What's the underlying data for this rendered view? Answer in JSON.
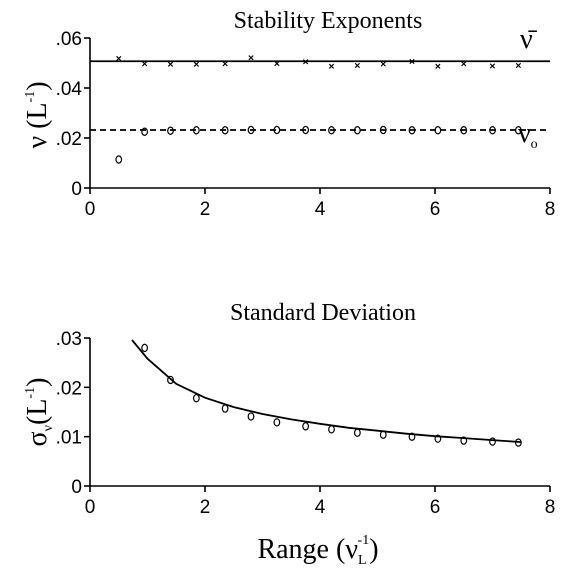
{
  "chart_data": [
    {
      "id": "stability",
      "type": "scatter",
      "title": "Stability Exponents",
      "ylabel": "ν",
      "ylabel_unit": "L",
      "ylabel_unit_sup": "-1",
      "xlim": [
        0,
        8
      ],
      "ylim": [
        0,
        0.06
      ],
      "xticks": [
        0,
        2,
        4,
        6,
        8
      ],
      "xtick_labels": [
        "0",
        "2",
        "4",
        "6",
        "8"
      ],
      "yticks": [
        0,
        0.02,
        0.04,
        0.06
      ],
      "ytick_labels": [
        "0",
        ".02",
        ".04",
        ".06"
      ],
      "grid": false,
      "series": [
        {
          "label": "ν̄",
          "marker": "x",
          "x": [
            0.5,
            0.95,
            1.4,
            1.85,
            2.35,
            2.8,
            3.25,
            3.75,
            4.2,
            4.65,
            5.1,
            5.6,
            6.05,
            6.5,
            7.0,
            7.45
          ],
          "y": [
            0.0518,
            0.0497,
            0.0495,
            0.0495,
            0.0497,
            0.0521,
            0.0498,
            0.0505,
            0.0487,
            0.049,
            0.0496,
            0.0506,
            0.0487,
            0.0497,
            0.0488,
            0.049
          ],
          "fit": {
            "style": "solid",
            "y": 0.0507
          }
        },
        {
          "label": "ν",
          "label_sub": "o",
          "marker": "o",
          "x": [
            0.5,
            0.95,
            1.4,
            1.85,
            2.35,
            2.8,
            3.25,
            3.75,
            4.2,
            4.65,
            5.1,
            5.6,
            6.05,
            6.5,
            7.0,
            7.45
          ],
          "y": [
            0.0114,
            0.0225,
            0.0229,
            0.0231,
            0.0231,
            0.0232,
            0.0232,
            0.0232,
            0.0231,
            0.0231,
            0.0232,
            0.0231,
            0.0231,
            0.0231,
            0.0231,
            0.0231
          ],
          "fit": {
            "style": "dashed",
            "y": 0.0232
          }
        }
      ]
    },
    {
      "id": "stddev",
      "type": "scatter",
      "title": "Standard Deviation",
      "ylabel": "σ",
      "ylabel_sub": "ν",
      "ylabel_unit": "L",
      "ylabel_unit_sup": "-1",
      "xlabel": "Range",
      "xlabel_symbol": "ν",
      "xlabel_symbol_sub": "L",
      "xlabel_symbol_sup": "-1",
      "xlim": [
        0,
        8
      ],
      "ylim": [
        0,
        0.03
      ],
      "xticks": [
        0,
        2,
        4,
        6,
        8
      ],
      "xtick_labels": [
        "0",
        "2",
        "4",
        "6",
        "8"
      ],
      "yticks": [
        0,
        0.01,
        0.02,
        0.03
      ],
      "ytick_labels": [
        "0",
        ".01",
        ".02",
        ".03"
      ],
      "grid": false,
      "series": [
        {
          "marker": "o",
          "x": [
            0.95,
            1.4,
            1.85,
            2.35,
            2.8,
            3.25,
            3.75,
            4.2,
            4.65,
            5.1,
            5.6,
            6.05,
            6.5,
            7.0,
            7.45
          ],
          "y": [
            0.028,
            0.0215,
            0.0178,
            0.0157,
            0.0141,
            0.0129,
            0.0121,
            0.0115,
            0.0108,
            0.0104,
            0.01,
            0.0096,
            0.0092,
            0.009,
            0.0088
          ],
          "fit": {
            "style": "solid",
            "x": [
              0.73,
              1.0,
              1.5,
              2.0,
              2.5,
              3.0,
              3.5,
              4.0,
              4.5,
              5.0,
              5.5,
              6.0,
              6.5,
              7.0,
              7.5
            ],
            "y": [
              0.0296,
              0.0258,
              0.0207,
              0.0179,
              0.016,
              0.0146,
              0.0135,
              0.0126,
              0.0118,
              0.0112,
              0.0106,
              0.0101,
              0.0097,
              0.0093,
              0.0089
            ]
          }
        }
      ]
    }
  ]
}
